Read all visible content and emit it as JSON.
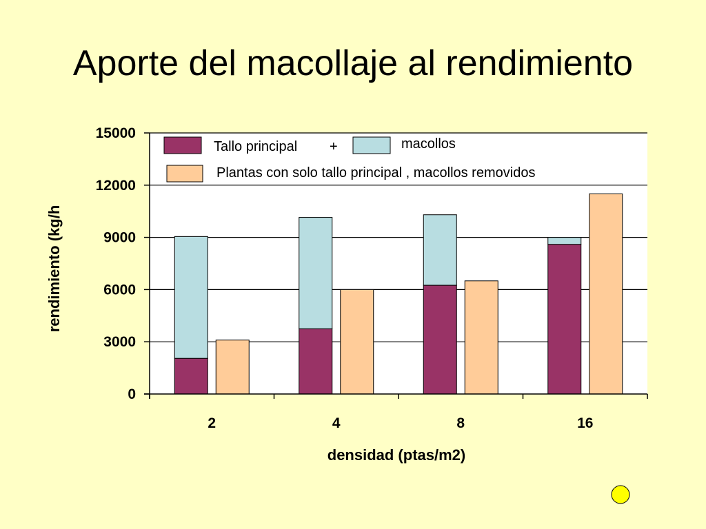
{
  "slide": {
    "title": "Aporte del macollaje al rendimiento"
  },
  "chart_data": {
    "type": "bar",
    "categories": [
      "2",
      "4",
      "8",
      "16"
    ],
    "xlabel": "densidad (ptas/m2)",
    "ylabel": "rendimiento (kg/h",
    "ylim": [
      0,
      15000
    ],
    "yticks": [
      "0",
      "3000",
      "6000",
      "9000",
      "12000",
      "15000"
    ],
    "grid": true,
    "legend": {
      "placement": "top",
      "tallo_label": "Tallo principal",
      "plus": "+",
      "macollos_label": "macollos",
      "removed_label": "Plantas con solo tallo principal , macollos removidos"
    },
    "series": [
      {
        "name": "Tallo principal",
        "stack": "A",
        "color": "#993366",
        "values": [
          2050,
          3750,
          6250,
          8600
        ]
      },
      {
        "name": "macollos",
        "stack": "A",
        "color": "#B8DDE1",
        "values": [
          7000,
          6400,
          4050,
          400
        ]
      },
      {
        "name": "Plantas con solo tallo principal , macollos removidos",
        "stack": "B",
        "color": "#FFCC99",
        "values": [
          3100,
          6000,
          6500,
          11500
        ]
      }
    ]
  },
  "decoration": {
    "circle_color": "#FFFF00"
  }
}
